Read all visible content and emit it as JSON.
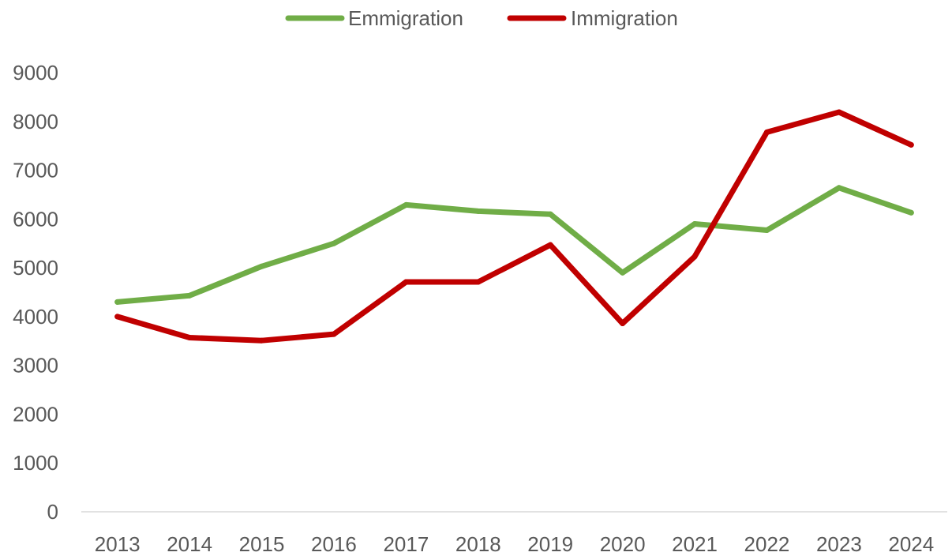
{
  "chart_data": {
    "type": "line",
    "title": "",
    "xlabel": "",
    "ylabel": "",
    "x": [
      "2013",
      "2014",
      "2015",
      "2016",
      "2017",
      "2018",
      "2019",
      "2020",
      "2021",
      "2022",
      "2023",
      "2024"
    ],
    "ylim": [
      0,
      9000
    ],
    "yticks": [
      0,
      1000,
      2000,
      3000,
      4000,
      5000,
      6000,
      7000,
      8000,
      9000
    ],
    "grid": false,
    "legend_position": "top",
    "series": [
      {
        "name": "Emmigration",
        "color": "#70ad47",
        "values": [
          4300,
          4430,
          5030,
          5500,
          6290,
          6160,
          6100,
          4900,
          5900,
          5770,
          6640,
          6130
        ]
      },
      {
        "name": "Immigration",
        "color": "#c00000",
        "values": [
          4000,
          3570,
          3510,
          3640,
          4710,
          4710,
          5470,
          3860,
          5230,
          7780,
          8190,
          7520
        ]
      }
    ]
  }
}
